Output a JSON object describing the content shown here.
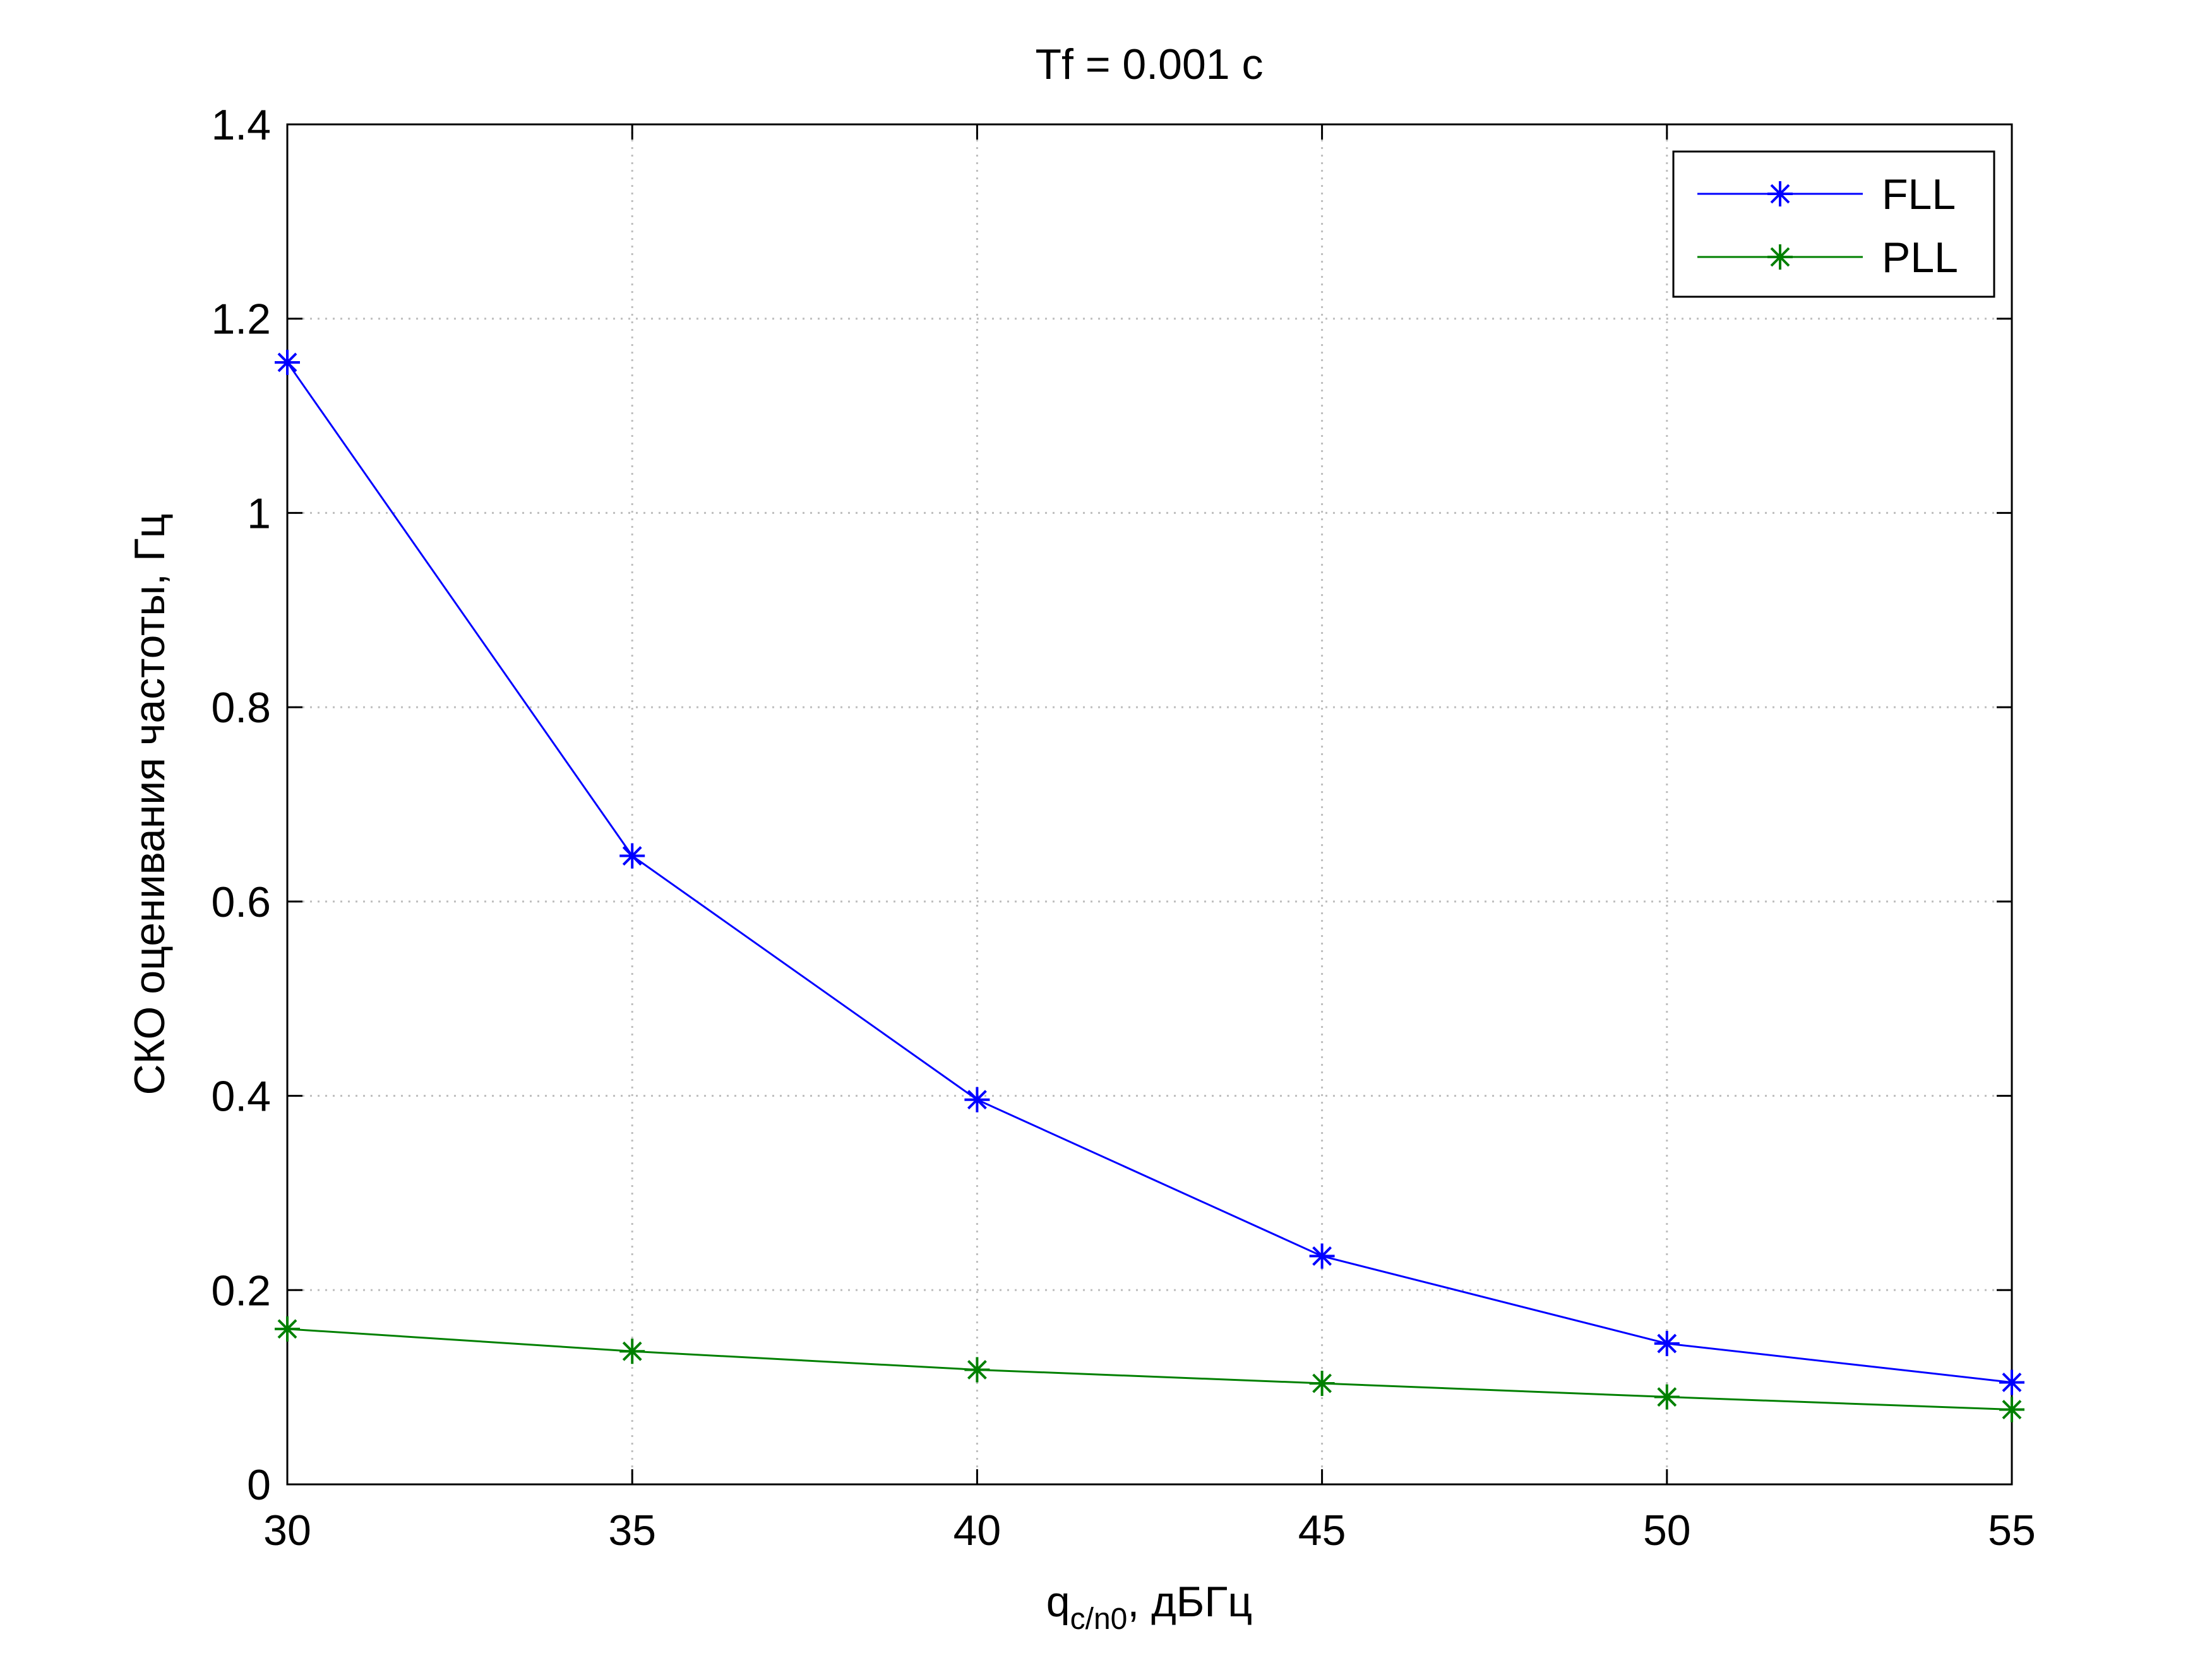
{
  "chart_data": {
    "type": "line",
    "title": "Tf = 0.001 c",
    "xlabel": {
      "main": "q",
      "sub": "c/n0",
      "suffix": ", дБГц"
    },
    "ylabel": "СКО оценивания частоты, Гц",
    "x": [
      30,
      35,
      40,
      45,
      50,
      55
    ],
    "xlim": [
      30,
      55
    ],
    "ylim": [
      0,
      1.4
    ],
    "xticks": [
      30,
      35,
      40,
      45,
      50,
      55
    ],
    "xtick_labels": [
      "30",
      "35",
      "40",
      "45",
      "50",
      "55"
    ],
    "yticks": [
      0,
      0.2,
      0.4,
      0.6,
      0.8,
      1,
      1.2,
      1.4
    ],
    "ytick_labels": [
      "0",
      "0.2",
      "0.4",
      "0.6",
      "0.8",
      "1",
      "1.2",
      "1.4"
    ],
    "grid": true,
    "legend_position": "top-right",
    "marker": "asterisk",
    "series": [
      {
        "name": "FLL",
        "color": "#0000ff",
        "values": [
          1.155,
          0.647,
          0.396,
          0.235,
          0.145,
          0.105
        ]
      },
      {
        "name": "PLL",
        "color": "#008000",
        "values": [
          0.16,
          0.137,
          0.118,
          0.104,
          0.09,
          0.077
        ]
      }
    ]
  }
}
